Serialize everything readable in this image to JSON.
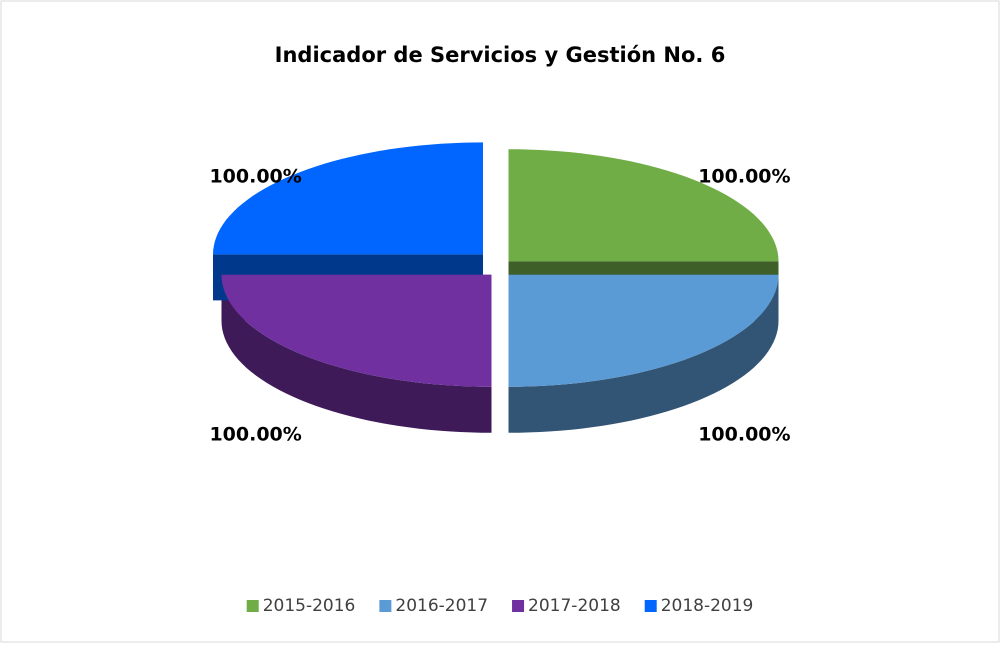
{
  "chart_data": {
    "type": "pie",
    "title": "Indicador de Servicios y Gestión No. 6",
    "categories": [
      "2015-2016",
      "2016-2017",
      "2017-2018",
      "2018-2019"
    ],
    "values": [
      100,
      100,
      100,
      100
    ],
    "value_labels": [
      "100.00%",
      "100.00%",
      "100.00%",
      "100.00%"
    ],
    "colors": [
      "#70ad47",
      "#5b9bd5",
      "#7030a0",
      "#0066ff"
    ],
    "legend": "bottom"
  }
}
